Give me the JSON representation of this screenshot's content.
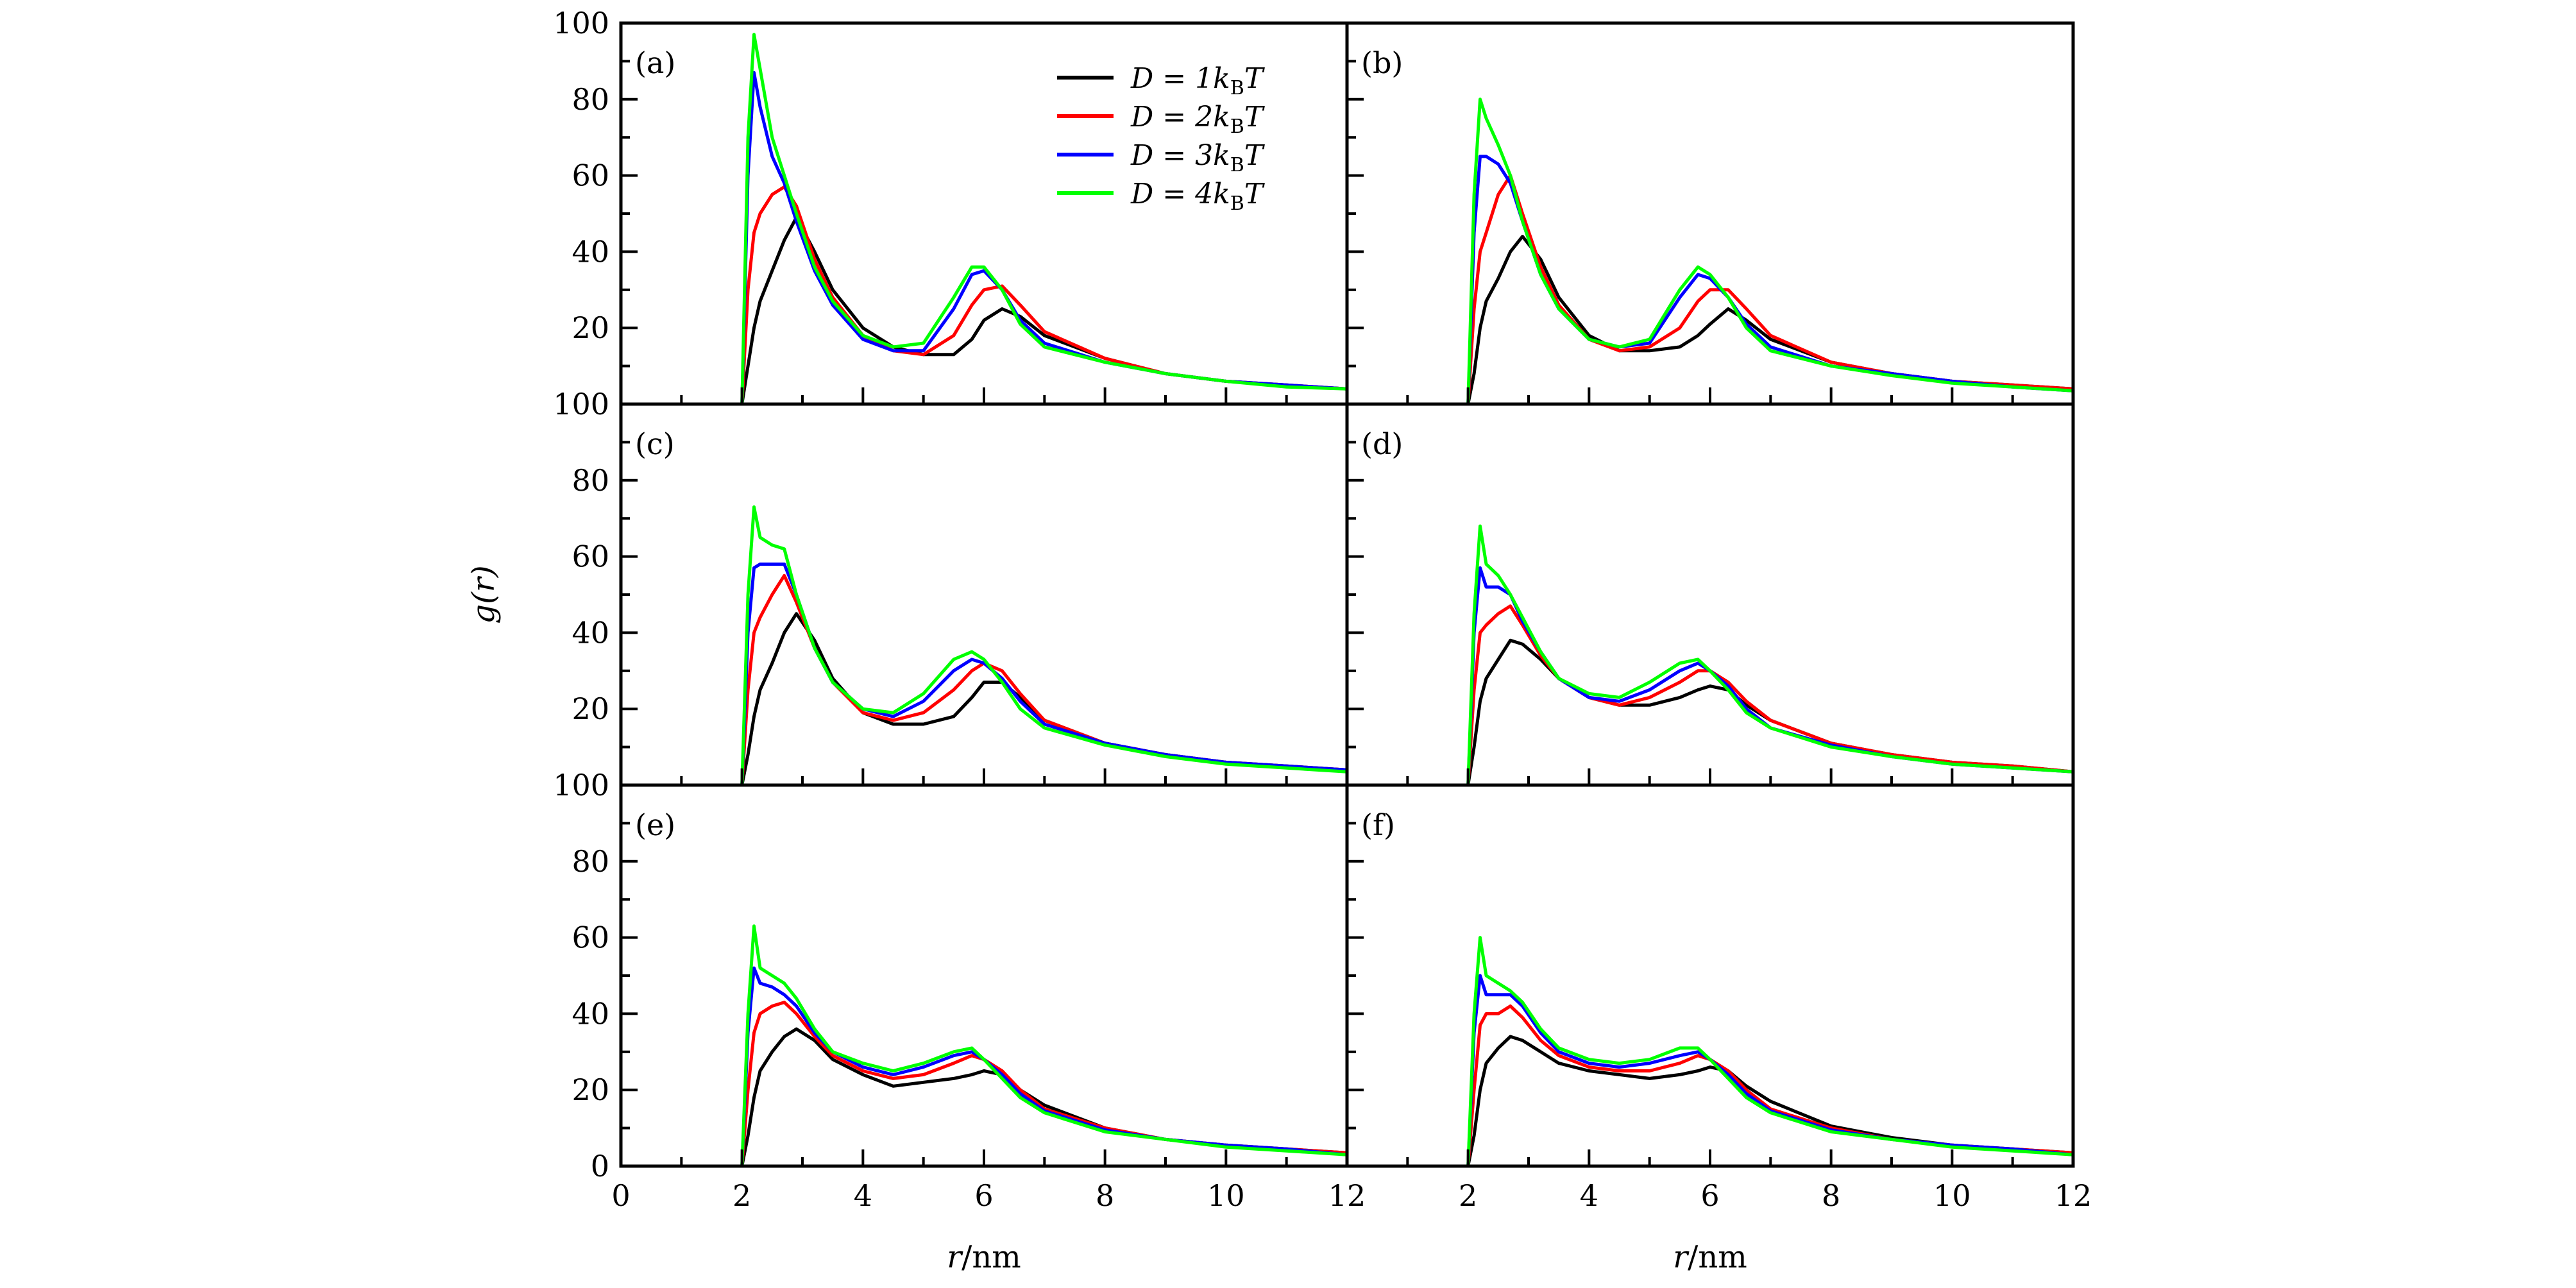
{
  "chart_data": {
    "type": "line",
    "layout": "3 rows x 2 columns",
    "xlabel_var": "r",
    "xlabel_unit": "/nm",
    "ylabel_var": "g",
    "ylabel_arg": "(r)",
    "xlim": [
      0,
      12
    ],
    "ylim": [
      0,
      100
    ],
    "xticks": [
      0,
      2,
      4,
      6,
      8,
      10,
      12
    ],
    "yticks": [
      0,
      20,
      40,
      60,
      80,
      100
    ],
    "grid": false,
    "legend_placement": "top-right of panel (a)",
    "series_meta": [
      {
        "label_main": "D = 1k",
        "label_sub": "B",
        "label_end": "T",
        "color": "#000000"
      },
      {
        "label_main": "D = 2k",
        "label_sub": "B",
        "label_end": "T",
        "color": "#ff0000"
      },
      {
        "label_main": "D = 3k",
        "label_sub": "B",
        "label_end": "T",
        "color": "#0000ff"
      },
      {
        "label_main": "D = 4k",
        "label_sub": "B",
        "label_end": "T",
        "color": "#00ff00"
      }
    ],
    "x": [
      2.0,
      2.1,
      2.2,
      2.3,
      2.5,
      2.7,
      2.9,
      3.2,
      3.5,
      4.0,
      4.5,
      5.0,
      5.5,
      5.8,
      6.0,
      6.3,
      6.6,
      7.0,
      8.0,
      9.0,
      10,
      11,
      12
    ],
    "panels": [
      {
        "label": "(a)",
        "series": [
          [
            0,
            10,
            20,
            27,
            35,
            43,
            49,
            40,
            30,
            20,
            15,
            13,
            13,
            17,
            22,
            25,
            23,
            18,
            12,
            8,
            6,
            5,
            4
          ],
          [
            0,
            30,
            45,
            50,
            55,
            57,
            52,
            38,
            28,
            18,
            14,
            13,
            18,
            26,
            30,
            31,
            26,
            19,
            12,
            8,
            6,
            5,
            4
          ],
          [
            0,
            60,
            87,
            78,
            65,
            58,
            48,
            35,
            26,
            17,
            14,
            14,
            25,
            34,
            35,
            30,
            22,
            16,
            11,
            8,
            6,
            5,
            4
          ],
          [
            0,
            70,
            97,
            88,
            70,
            60,
            50,
            36,
            27,
            18,
            15,
            16,
            28,
            36,
            36,
            30,
            21,
            15,
            11,
            8,
            6,
            4.5,
            4
          ]
        ]
      },
      {
        "label": "(b)",
        "series": [
          [
            0,
            8,
            20,
            27,
            33,
            40,
            44,
            38,
            28,
            18,
            14,
            14,
            15,
            18,
            21,
            25,
            22,
            17,
            11,
            8,
            6,
            5,
            4
          ],
          [
            0,
            25,
            40,
            45,
            55,
            60,
            50,
            36,
            26,
            17,
            14,
            15,
            20,
            27,
            30,
            30,
            25,
            18,
            11,
            8,
            6,
            5,
            4
          ],
          [
            0,
            45,
            65,
            65,
            63,
            58,
            48,
            34,
            25,
            17,
            15,
            16,
            28,
            34,
            33,
            28,
            21,
            15,
            10,
            8,
            6,
            4.5,
            3.5
          ],
          [
            0,
            55,
            80,
            75,
            68,
            60,
            48,
            34,
            25,
            17,
            15,
            17,
            30,
            36,
            34,
            28,
            20,
            14,
            10,
            7.5,
            5.5,
            4.5,
            3.5
          ]
        ]
      },
      {
        "label": "(c)",
        "series": [
          [
            0,
            8,
            18,
            25,
            32,
            40,
            45,
            38,
            28,
            19,
            16,
            16,
            18,
            23,
            27,
            27,
            23,
            17,
            11,
            8,
            6,
            5,
            4
          ],
          [
            0,
            25,
            40,
            44,
            50,
            55,
            48,
            36,
            27,
            19,
            17,
            19,
            25,
            30,
            32,
            30,
            24,
            17,
            11,
            8,
            6,
            5,
            4
          ],
          [
            0,
            40,
            57,
            58,
            58,
            58,
            50,
            36,
            27,
            20,
            18,
            22,
            30,
            33,
            32,
            28,
            22,
            16,
            11,
            8,
            6,
            5,
            4
          ],
          [
            0,
            50,
            73,
            65,
            63,
            62,
            50,
            36,
            27,
            20,
            19,
            24,
            33,
            35,
            33,
            27,
            20,
            15,
            10.5,
            7.5,
            5.5,
            4.5,
            3.5
          ]
        ]
      },
      {
        "label": "(d)",
        "series": [
          [
            0,
            10,
            22,
            28,
            33,
            38,
            37,
            33,
            28,
            23,
            21,
            21,
            23,
            25,
            26,
            25,
            21,
            17,
            11,
            8,
            6,
            5,
            3.5
          ],
          [
            0,
            25,
            40,
            42,
            45,
            47,
            42,
            34,
            28,
            23,
            21,
            23,
            27,
            30,
            30,
            27,
            22,
            17,
            11,
            8,
            6,
            5,
            3.5
          ],
          [
            0,
            40,
            57,
            52,
            52,
            50,
            43,
            35,
            28,
            23,
            22,
            25,
            30,
            32,
            30,
            26,
            20,
            15,
            10.5,
            7.5,
            5.5,
            4.5,
            3.5
          ],
          [
            0,
            45,
            68,
            58,
            55,
            50,
            44,
            35,
            28,
            24,
            23,
            27,
            32,
            33,
            30,
            25,
            19,
            15,
            10,
            7.5,
            5.5,
            4.5,
            3.5
          ]
        ]
      },
      {
        "label": "(e)",
        "series": [
          [
            0,
            8,
            18,
            25,
            30,
            34,
            36,
            33,
            28,
            24,
            21,
            22,
            23,
            24,
            25,
            24,
            20,
            16,
            10,
            7,
            5.5,
            4.5,
            3.5
          ],
          [
            0,
            20,
            35,
            40,
            42,
            43,
            40,
            34,
            29,
            25,
            23,
            24,
            27,
            29,
            28,
            25,
            20,
            15,
            10,
            7,
            5.5,
            4.5,
            3.5
          ],
          [
            0,
            35,
            52,
            48,
            47,
            45,
            42,
            35,
            30,
            26,
            24,
            26,
            29,
            30,
            28,
            24,
            19,
            14.5,
            9.5,
            7,
            5.5,
            4.5,
            3
          ],
          [
            0,
            40,
            63,
            52,
            50,
            48,
            44,
            36,
            30,
            27,
            25,
            27,
            30,
            31,
            28,
            23,
            18,
            14,
            9,
            7,
            5,
            4,
            3
          ]
        ]
      },
      {
        "label": "(f)",
        "series": [
          [
            0,
            8,
            20,
            27,
            31,
            34,
            33,
            30,
            27,
            25,
            24,
            23,
            24,
            25,
            26,
            25,
            21,
            17,
            10.5,
            7.5,
            5.5,
            4.5,
            3.5
          ],
          [
            0,
            20,
            37,
            40,
            40,
            42,
            39,
            33,
            29,
            26,
            25,
            25,
            27,
            29,
            28,
            25,
            20,
            15,
            10,
            7,
            5.5,
            4.5,
            3.5
          ],
          [
            0,
            35,
            50,
            45,
            45,
            45,
            42,
            35,
            30,
            27,
            26,
            27,
            29,
            30,
            28,
            24,
            19,
            14.5,
            9.5,
            7,
            5.5,
            4.5,
            3
          ],
          [
            0,
            40,
            60,
            50,
            48,
            46,
            43,
            36,
            31,
            28,
            27,
            28,
            31,
            31,
            28,
            23,
            18,
            14,
            9,
            7,
            5,
            4,
            3
          ]
        ]
      }
    ]
  }
}
